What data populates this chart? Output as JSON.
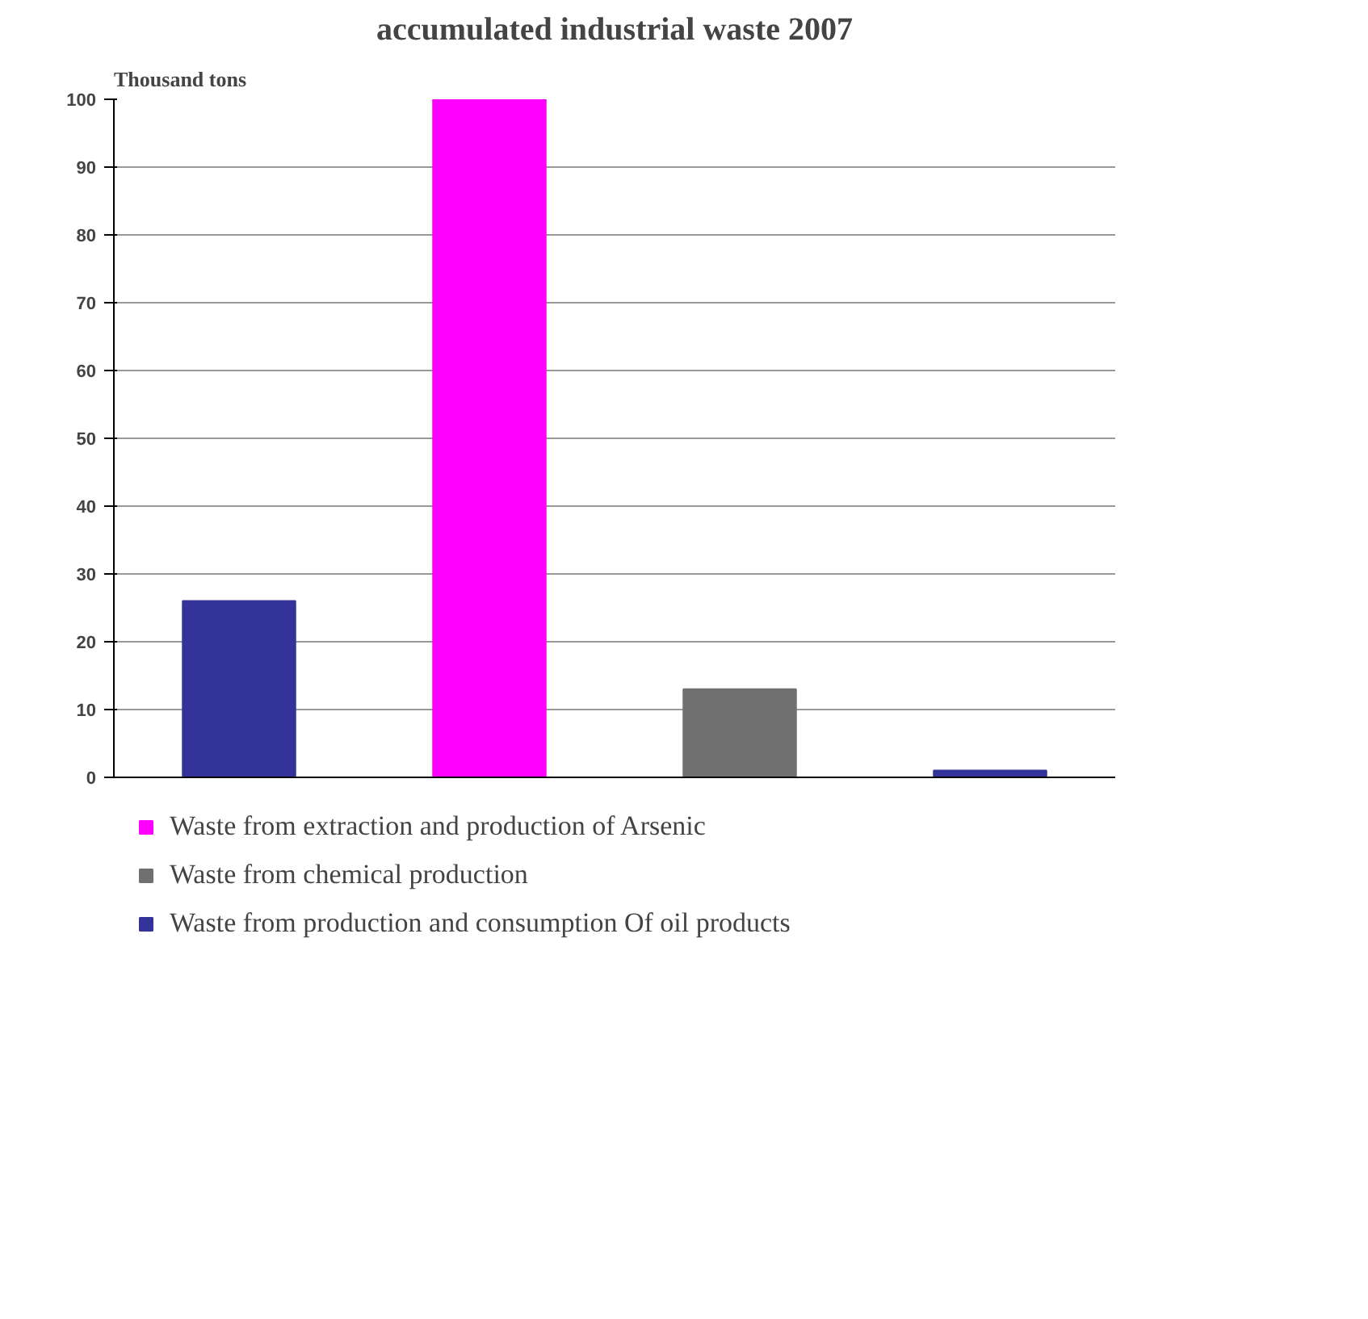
{
  "chart_data": {
    "type": "bar",
    "title": "accumulated industrial waste 2007",
    "ylabel": "Thousand tons",
    "categories": [
      null,
      null,
      null,
      null
    ],
    "series": [
      {
        "name": "Waste from extraction and production of Arsenic",
        "color": "#ff00ff",
        "values": [
          null,
          100,
          null,
          null
        ]
      },
      {
        "name": "Waste from chemical production",
        "color": "#707070",
        "values": [
          null,
          null,
          13,
          null
        ]
      },
      {
        "name": "Waste from production and consumption Of oil products",
        "color": "#333399",
        "values": [
          26,
          null,
          null,
          1
        ]
      }
    ],
    "ylim": [
      0,
      100
    ],
    "yticks": [
      0,
      10,
      20,
      30,
      40,
      50,
      60,
      70,
      80,
      90,
      100
    ],
    "grid": "y",
    "legend": "bottom"
  }
}
